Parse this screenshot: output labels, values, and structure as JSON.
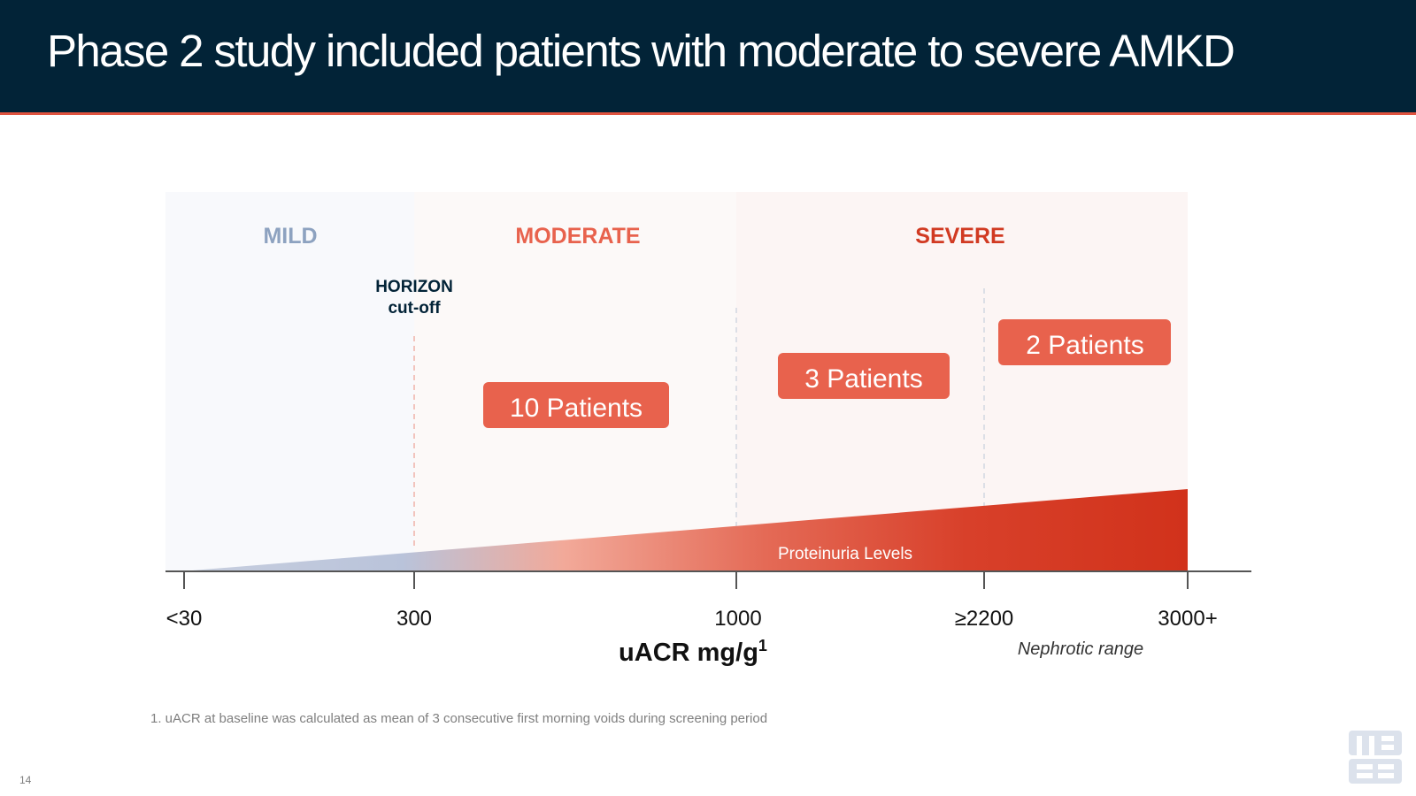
{
  "header": {
    "title": "Phase 2 study included patients with moderate to severe AMKD"
  },
  "regions": {
    "mild": "MILD",
    "moderate": "MODERATE",
    "severe": "SEVERE"
  },
  "cutoff": {
    "line1": "HORIZON",
    "line2": "cut-off"
  },
  "patient_boxes": [
    {
      "label": "10 Patients"
    },
    {
      "label": "3 Patients"
    },
    {
      "label": "2 Patients"
    }
  ],
  "wedge_label": "Proteinuria Levels",
  "axis": {
    "ticks": [
      "<30",
      "300",
      "1000",
      "≥2200",
      "3000+"
    ],
    "title_main": "uACR mg/g",
    "title_sup": "1",
    "nephrotic": "Nephrotic range"
  },
  "footnote": "1. uACR at baseline was calculated as mean of 3 consecutive first morning voids during screening period",
  "page_number": "14",
  "colors": {
    "header_bg": "#022337",
    "accent": "#e0533f",
    "mild": "#8da2c0",
    "moderate": "#e8624d",
    "severe": "#d13a22",
    "box": "#e8624d"
  }
}
